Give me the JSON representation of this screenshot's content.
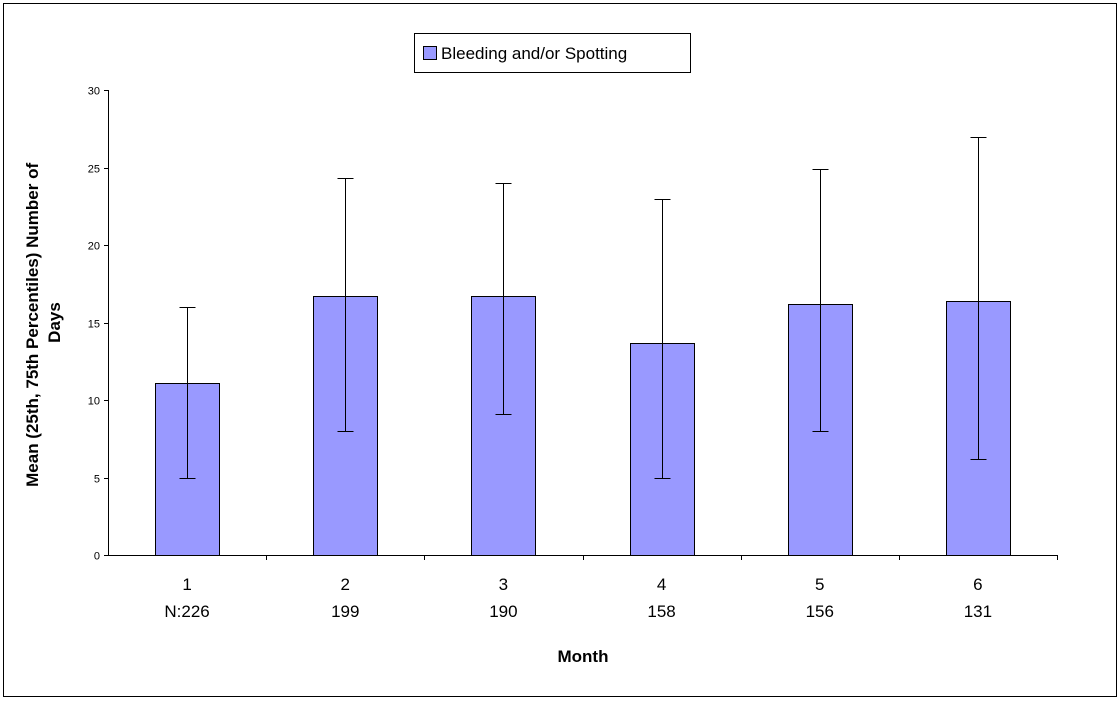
{
  "chart_data": {
    "type": "bar",
    "categories": [
      "1",
      "2",
      "3",
      "4",
      "5",
      "6"
    ],
    "n_labels": [
      "N:226",
      "199",
      "190",
      "158",
      "156",
      "131"
    ],
    "series": [
      {
        "name": "Bleeding and/or Spotting",
        "values": [
          11.1,
          16.7,
          16.7,
          13.7,
          16.2,
          16.4
        ],
        "p25": [
          5,
          8,
          9.1,
          5,
          8,
          6.2
        ],
        "p75": [
          16,
          24.3,
          24,
          23,
          24.9,
          27
        ]
      }
    ],
    "xlabel": "Month",
    "ylabel": "Mean (25th, 75th Percentiles) Number of Days",
    "ylim": [
      0,
      30
    ],
    "yticks": [
      "0",
      "5",
      "10",
      "15",
      "20",
      "25",
      "30"
    ],
    "grid": false,
    "legend_position": "top-center",
    "colors": {
      "bar": "#9999ff",
      "bar_stroke": "#000000",
      "axis": "#000000",
      "frame": "#000000"
    }
  }
}
